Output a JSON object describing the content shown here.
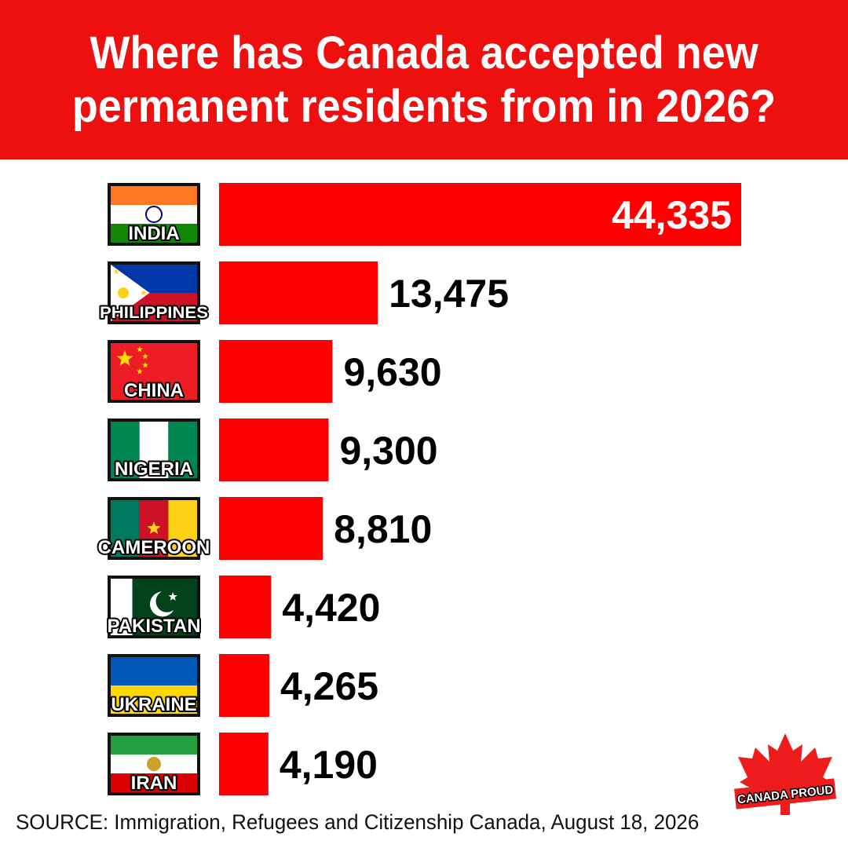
{
  "header": {
    "title_line1": "Where has Canada accepted new",
    "title_line2": "permanent residents from in 2026?"
  },
  "chart_data": {
    "type": "bar",
    "orientation": "horizontal",
    "title": "Where has Canada accepted new permanent residents from in 2026?",
    "categories": [
      "INDIA",
      "PHILIPPINES",
      "CHINA",
      "NIGERIA",
      "CAMEROON",
      "PAKISTAN",
      "UKRAINE",
      "IRAN"
    ],
    "values": [
      44335,
      13475,
      9630,
      9300,
      8810,
      4420,
      4265,
      4190
    ],
    "value_labels": [
      "44,335",
      "13,475",
      "9,630",
      "9,300",
      "8,810",
      "4,420",
      "4,265",
      "4,190"
    ],
    "flag_icons": [
      "india-flag-icon",
      "philippines-flag-icon",
      "china-flag-icon",
      "nigeria-flag-icon",
      "cameroon-flag-icon",
      "pakistan-flag-icon",
      "ukraine-flag-icon",
      "iran-flag-icon"
    ],
    "bar_color": "#ff0000",
    "value_inside_color": "#ffffff",
    "value_outside_color": "#000000",
    "xlim": [
      0,
      44335
    ],
    "grid": false,
    "xlabel": "",
    "ylabel": ""
  },
  "footer": {
    "source": "SOURCE: Immigration, Refugees and Citizenship Canada, August 18, 2026"
  },
  "logo": {
    "text": "CANADA PROUD",
    "icon": "maple-leaf-icon"
  },
  "colors": {
    "header_bg": "#ee0f0f",
    "title_text": "#ffffff",
    "background": "#ffffff"
  }
}
